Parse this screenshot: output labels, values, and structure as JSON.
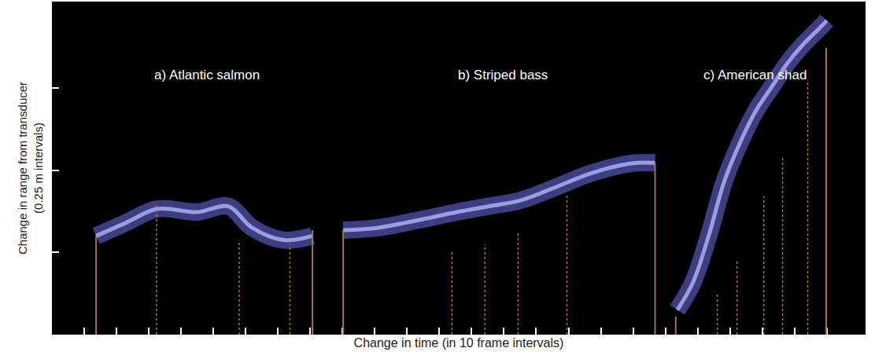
{
  "chart_data": {
    "type": "line",
    "x_label": "Change in time (in 10 frame intervals)",
    "y_label": "Change in range from transducer (0.25 m intervals)",
    "xlim": [
      0,
      25.2
    ],
    "xticks": [
      1,
      2,
      3,
      4,
      5,
      6,
      7,
      8,
      9,
      10,
      11,
      12,
      13,
      14,
      15,
      16,
      17,
      18,
      19,
      20,
      21,
      22,
      23,
      24
    ],
    "ylim": [
      0,
      4.05
    ],
    "yticks": [
      1,
      2,
      3
    ],
    "tick_labels": false,
    "grid": false,
    "series": [
      {
        "name": "a) Atlantic salmon",
        "color": "#7070e8",
        "x": [
          1.37,
          2.29,
          3.27,
          4.49,
          5.46,
          6.2,
          7.17,
          8.07
        ],
        "values": [
          1.2,
          1.36,
          1.53,
          1.49,
          1.56,
          1.3,
          1.15,
          1.2
        ],
        "frame_lines": [
          {
            "x": 1.37,
            "height": 1.2,
            "line_style": "solid",
            "color": "#a07a45"
          },
          {
            "x": 3.24,
            "height": 1.58,
            "line_style": "dotted",
            "color": "#a07a45"
          },
          {
            "x": 5.8,
            "height": 1.15,
            "line_style": "dotted",
            "color": "#a07a45"
          },
          {
            "x": 7.37,
            "height": 1.1,
            "line_style": "dotted",
            "color": "#a07a45"
          },
          {
            "x": 8.07,
            "height": 1.27,
            "line_style": "solid",
            "color": "#a07a45"
          }
        ]
      },
      {
        "name": "b) Striped bass",
        "color": "#7070e8",
        "x": [
          9.02,
          10.1,
          11.32,
          12.54,
          13.51,
          14.49,
          15.46,
          16.68,
          17.9,
          18.68
        ],
        "values": [
          1.27,
          1.3,
          1.39,
          1.49,
          1.56,
          1.63,
          1.77,
          1.96,
          2.08,
          2.09
        ],
        "frame_lines": [
          {
            "x": 9.02,
            "height": 1.27,
            "line_style": "solid",
            "color": "#a07a45"
          },
          {
            "x": 12.39,
            "height": 1.01,
            "line_style": "dotted",
            "color": "#a07a45"
          },
          {
            "x": 13.41,
            "height": 1.1,
            "line_style": "dotted",
            "color": "#a07a45"
          },
          {
            "x": 14.44,
            "height": 1.25,
            "line_style": "dotted",
            "color": "#a07a45"
          },
          {
            "x": 15.95,
            "height": 1.72,
            "line_style": "dotted",
            "color": "#a07a45"
          },
          {
            "x": 18.68,
            "height": 2.09,
            "line_style": "solid",
            "color": "#a07a45"
          }
        ]
      },
      {
        "name": "c) American shad",
        "color": "#7070e8",
        "x": [
          19.37,
          19.85,
          20.34,
          20.83,
          21.32,
          21.8,
          22.29,
          22.78,
          23.27,
          23.76,
          24.0
        ],
        "values": [
          0.3,
          0.63,
          1.2,
          1.87,
          2.34,
          2.72,
          3.01,
          3.3,
          3.53,
          3.72,
          3.82
        ],
        "frame_lines": [
          {
            "x": 19.32,
            "height": 0.22,
            "line_style": "solid",
            "color": "#a07a45"
          },
          {
            "x": 20.61,
            "height": 0.49,
            "line_style": "dotted",
            "color": "#a07a45"
          },
          {
            "x": 21.22,
            "height": 0.91,
            "line_style": "dotted",
            "color": "#a07a45"
          },
          {
            "x": 22.05,
            "height": 1.68,
            "line_style": "dotted",
            "color": "#a07a45"
          },
          {
            "x": 22.63,
            "height": 2.15,
            "line_style": "dotted",
            "color": "#a07a45"
          },
          {
            "x": 23.41,
            "height": 3.1,
            "line_style": "dotted",
            "color": "#a07a45"
          },
          {
            "x": 23.98,
            "height": 3.49,
            "line_style": "solid",
            "color": "#a07a45"
          }
        ]
      }
    ]
  }
}
